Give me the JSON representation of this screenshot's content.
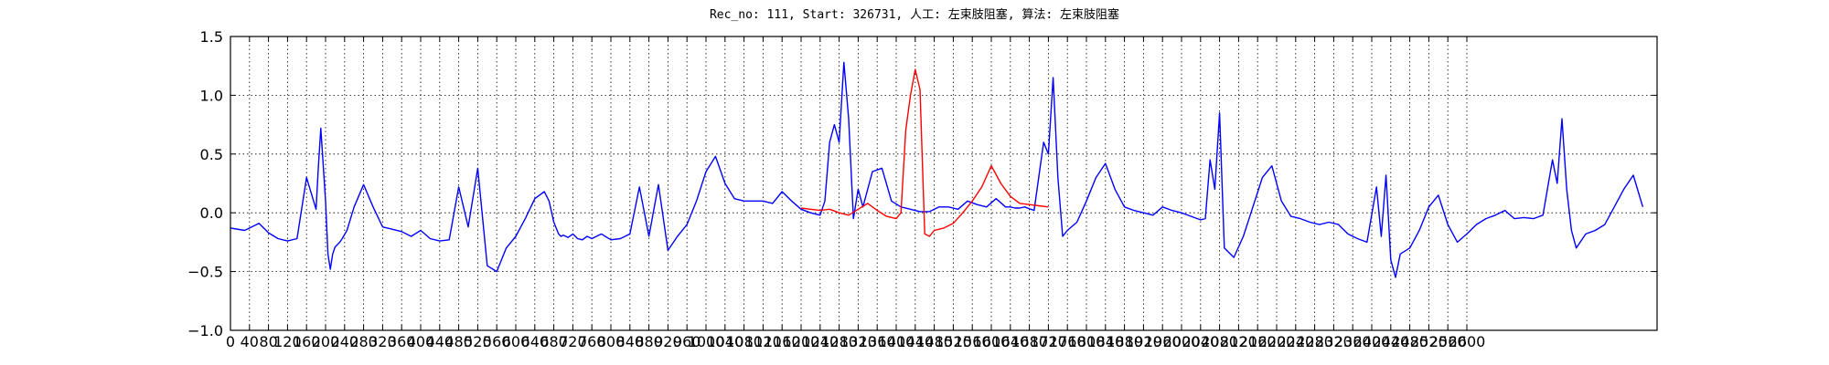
{
  "chart_data": {
    "type": "line",
    "title": "Rec_no: 111, Start: 326731, 人工: 左束肢阻塞, 算法: 左束肢阻塞",
    "xlabel": "",
    "ylabel": "",
    "xlim": [
      0,
      3000
    ],
    "ylim": [
      -1.0,
      1.5
    ],
    "yticks": [
      -1.0,
      -0.5,
      0.0,
      0.5,
      1.0,
      1.5
    ],
    "ytick_labels": [
      "−1.0",
      "−0.5",
      "0.0",
      "0.5",
      "1.0",
      "1.5"
    ],
    "xticks": [
      0,
      40,
      80,
      120,
      160,
      200,
      240,
      280,
      320,
      360,
      400,
      440,
      480,
      520,
      560,
      600,
      640,
      680,
      720,
      760,
      800,
      840,
      880,
      920,
      960,
      1000,
      1040,
      1080,
      1120,
      1160,
      1200,
      1240,
      1280,
      1320,
      1360,
      1400,
      1440,
      1480,
      1520,
      1560,
      1600,
      1640,
      1680,
      1720,
      1760,
      1800,
      1840,
      1880,
      1920,
      1960,
      2000,
      2040,
      2080,
      2120,
      2160,
      2200,
      2240,
      2280,
      2320,
      2360,
      2400,
      2440,
      2480,
      2520,
      2560,
      2600
    ],
    "grid": true,
    "series": [
      {
        "color": "#0000ff",
        "x": [
          0,
          30,
          60,
          80,
          100,
          120,
          140,
          160,
          180,
          185,
          190,
          200,
          205,
          210,
          215,
          220,
          230,
          235,
          245,
          260,
          280,
          300,
          320,
          340,
          360,
          380,
          400,
          420,
          440,
          460,
          480,
          500,
          520,
          540,
          560,
          580,
          600,
          620,
          640,
          660,
          670,
          680,
          690,
          695,
          700,
          705,
          710,
          720,
          730,
          740,
          750,
          760,
          780,
          800,
          820,
          840,
          860,
          880,
          900,
          920,
          940,
          960,
          980,
          1000,
          1020,
          1040,
          1060,
          1080,
          1100,
          1120,
          1140,
          1160,
          1180,
          1200,
          1220,
          1240,
          1250,
          1260,
          1270,
          1280,
          1290,
          1300,
          1310,
          1320,
          1330,
          1350,
          1370,
          1390,
          1410,
          1430,
          1450,
          1470,
          1490,
          1510,
          1530,
          1550,
          1570,
          1590,
          1610,
          1630,
          1640,
          1650,
          1660,
          1670,
          1690,
          1710,
          1720,
          1730,
          1740,
          1750,
          1760,
          1780,
          1800,
          1820,
          1840,
          1860,
          1880,
          1900,
          1920,
          1940,
          1960,
          1980,
          2000,
          2020,
          2040,
          2050,
          2060,
          2070,
          2080,
          2090,
          2110,
          2130,
          2150,
          2170,
          2190,
          2210,
          2230,
          2250,
          2270,
          2290,
          2310,
          2330,
          2350,
          2370,
          2390,
          2410,
          2420,
          2430,
          2440,
          2450,
          2460,
          2480,
          2500,
          2520,
          2540,
          2560,
          2580,
          2600,
          2620,
          2640,
          2660,
          2680,
          2700,
          2720,
          2740,
          2760,
          2780,
          2790,
          2800,
          2810,
          2820,
          2830,
          2850,
          2870,
          2890,
          2910,
          2930,
          2950,
          2970
        ],
        "y": [
          -0.13,
          -0.15,
          -0.09,
          -0.17,
          -0.22,
          -0.24,
          -0.22,
          0.3,
          0.03,
          0.4,
          0.72,
          0.1,
          -0.35,
          -0.48,
          -0.35,
          -0.29,
          -0.25,
          -0.22,
          -0.15,
          0.05,
          0.24,
          0.05,
          -0.12,
          -0.14,
          -0.16,
          -0.2,
          -0.15,
          -0.22,
          -0.24,
          -0.23,
          0.22,
          -0.12,
          0.38,
          -0.45,
          -0.5,
          -0.3,
          -0.2,
          -0.05,
          0.12,
          0.18,
          0.1,
          -0.08,
          -0.18,
          -0.2,
          -0.19,
          -0.2,
          -0.21,
          -0.18,
          -0.22,
          -0.23,
          -0.2,
          -0.22,
          -0.18,
          -0.23,
          -0.22,
          -0.18,
          0.22,
          -0.2,
          0.24,
          -0.32,
          -0.2,
          -0.1,
          0.1,
          0.35,
          0.48,
          0.25,
          0.12,
          0.1,
          0.1,
          0.1,
          0.08,
          0.18,
          0.1,
          0.03,
          0.0,
          -0.02,
          0.1,
          0.6,
          0.75,
          0.6,
          1.28,
          0.8,
          -0.05,
          0.2,
          0.05,
          0.35,
          0.38,
          0.1,
          0.05,
          0.03,
          0.01,
          0.01,
          0.05,
          0.05,
          0.03,
          0.1,
          0.07,
          0.05,
          0.12,
          0.05,
          0.05,
          0.04,
          0.04,
          0.05,
          0.02,
          0.6,
          0.5,
          1.15,
          0.3,
          -0.2,
          -0.15,
          -0.08,
          0.1,
          0.3,
          0.42,
          0.2,
          0.05,
          0.02,
          0.0,
          -0.02,
          0.05,
          0.02,
          0.0,
          -0.03,
          -0.06,
          -0.05,
          0.45,
          0.2,
          0.85,
          -0.3,
          -0.38,
          -0.2,
          0.05,
          0.3,
          0.4,
          0.1,
          -0.03,
          -0.05,
          -0.08,
          -0.1,
          -0.08,
          -0.1,
          -0.18,
          -0.22,
          -0.25,
          0.22,
          -0.2,
          0.32,
          -0.4,
          -0.55,
          -0.35,
          -0.3,
          -0.15,
          0.05,
          0.15,
          -0.1,
          -0.25,
          -0.18,
          -0.1,
          -0.05,
          -0.02,
          0.02,
          -0.05,
          -0.04,
          -0.05,
          -0.02,
          0.45,
          0.25,
          0.8,
          0.2,
          -0.15,
          -0.3,
          -0.18,
          -0.15,
          -0.1,
          0.05,
          0.2,
          0.32,
          0.05
        ]
      },
      {
        "color": "#ff0000",
        "x": [
          1200,
          1220,
          1240,
          1260,
          1280,
          1300,
          1320,
          1340,
          1360,
          1380,
          1400,
          1410,
          1420,
          1430,
          1440,
          1450,
          1460,
          1470,
          1480,
          1500,
          1520,
          1540,
          1560,
          1580,
          1600,
          1620,
          1640,
          1660,
          1680,
          1700,
          1720
        ],
        "y": [
          0.04,
          0.03,
          0.02,
          0.03,
          0.0,
          -0.02,
          0.03,
          0.08,
          0.02,
          -0.03,
          -0.05,
          0.0,
          0.7,
          1.0,
          1.22,
          1.05,
          -0.18,
          -0.2,
          -0.15,
          -0.13,
          -0.09,
          0.0,
          0.1,
          0.22,
          0.4,
          0.25,
          0.14,
          0.08,
          0.07,
          0.06,
          0.05
        ]
      }
    ]
  }
}
